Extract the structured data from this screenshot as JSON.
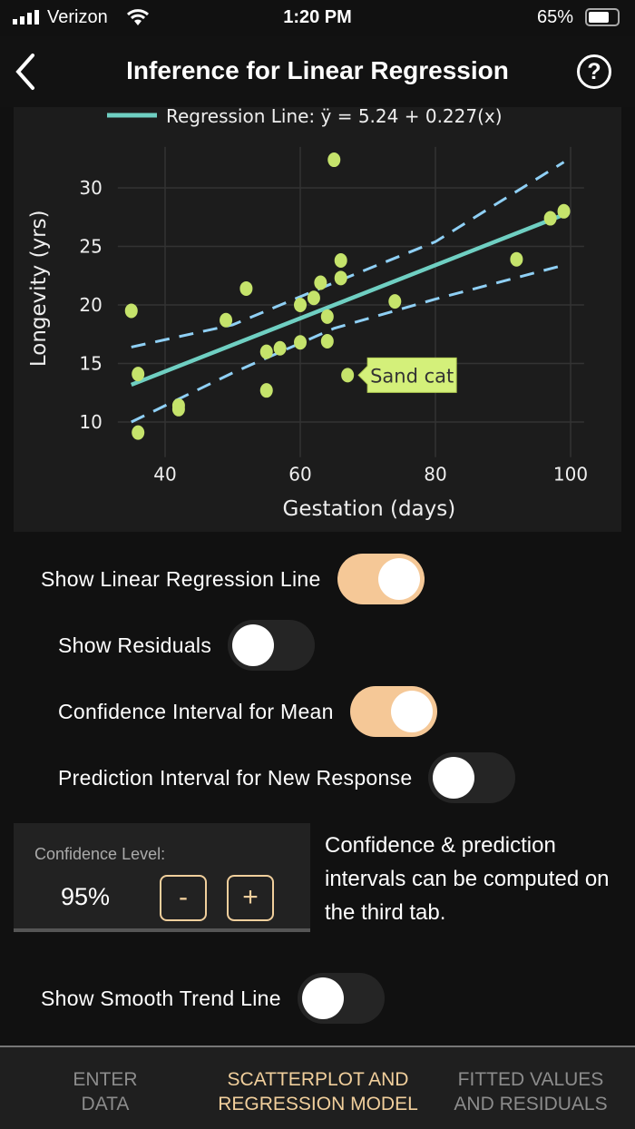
{
  "status_bar": {
    "carrier": "Verizon",
    "time": "1:20 PM",
    "battery": "65%",
    "battery_level": 0.65
  },
  "header": {
    "title": "Inference for Linear Regression",
    "back_icon": "chevron-left-icon",
    "help_icon": "question-circle-icon"
  },
  "chart_data": {
    "type": "scatter",
    "legend": {
      "label": "Regression Line: ÿ = 5.24 + 0.227(x)",
      "placement": "top"
    },
    "xlabel": "Gestation (days)",
    "ylabel": "Longevity (yrs)",
    "xlim": [
      33,
      102
    ],
    "ylim": [
      7,
      33.5
    ],
    "xticks": [
      40,
      60,
      80,
      100
    ],
    "yticks": [
      10,
      15,
      20,
      25,
      30
    ],
    "grid": true,
    "points": [
      [
        35,
        19.5
      ],
      [
        36,
        14.1
      ],
      [
        36,
        9.1
      ],
      [
        42,
        11.4
      ],
      [
        42,
        11.1
      ],
      [
        49,
        18.7
      ],
      [
        52,
        21.4
      ],
      [
        55,
        16
      ],
      [
        55,
        12.7
      ],
      [
        57,
        16.3
      ],
      [
        60,
        20
      ],
      [
        60,
        16.8
      ],
      [
        62,
        20.6
      ],
      [
        63,
        21.9
      ],
      [
        64,
        19
      ],
      [
        64,
        16.9
      ],
      [
        65,
        32.4
      ],
      [
        66,
        23.8
      ],
      [
        66,
        22.3
      ],
      [
        67,
        14
      ],
      [
        74,
        20.3
      ],
      [
        92,
        23.9
      ],
      [
        97,
        27.4
      ],
      [
        99,
        28
      ]
    ],
    "regression": {
      "intercept": 5.24,
      "slope": 0.227,
      "x_range": [
        35,
        99
      ]
    },
    "confidence_band": {
      "x": [
        35,
        50,
        65,
        80,
        99
      ],
      "upper": [
        16.4,
        18.3,
        21.9,
        25.4,
        32.2
      ],
      "lower": [
        10,
        14.2,
        18,
        20.5,
        23.4
      ]
    },
    "annotation": {
      "label": "Sand cat",
      "x": 67,
      "y": 14
    },
    "colors": {
      "points": "#c5e36b",
      "line": "#6fcfc2",
      "band": "#8fd0f5",
      "annotation_bg": "#d4f07a"
    }
  },
  "controls": {
    "show_regression": {
      "label": "Show Linear Regression Line",
      "on": true
    },
    "show_residuals": {
      "label": "Show Residuals",
      "on": false
    },
    "ci_mean": {
      "label": "Confidence Interval for Mean",
      "on": true
    },
    "pi_new": {
      "label": "Prediction Interval for New Response",
      "on": false
    },
    "smooth": {
      "label": "Show Smooth Trend Line",
      "on": false
    }
  },
  "confidence": {
    "label": "Confidence Level:",
    "value": "95%",
    "minus": "-",
    "plus": "+"
  },
  "note": "Confidence & prediction intervals can be computed on the third tab.",
  "tabs": [
    {
      "line1": "ENTER",
      "line2": "DATA"
    },
    {
      "line1": "SCATTERPLOT AND",
      "line2": "REGRESSION MODEL",
      "active": true
    },
    {
      "line1": "FITTED VALUES",
      "line2": "AND RESIDUALS"
    }
  ],
  "accent": "#f1cf9c"
}
